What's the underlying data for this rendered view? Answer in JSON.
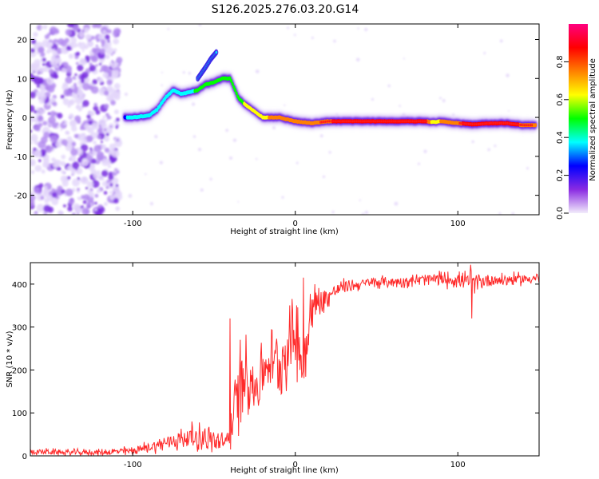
{
  "title": "S126.2025.276.03.20.G14",
  "chart_data": [
    {
      "type": "heatmap",
      "xlabel": "Height of straight line (km)",
      "ylabel": "Frequency (Hz)",
      "xlim": [
        -163,
        150
      ],
      "ylim": [
        -25,
        24
      ],
      "xticks": [
        -100,
        0,
        100
      ],
      "yticks": [
        -20,
        -10,
        0,
        10,
        20
      ],
      "colorbar": {
        "label": "Normalized spectral amplitude",
        "range": [
          0,
          1
        ],
        "ticks": [
          "0.0",
          "0.2",
          "0.4",
          "0.6",
          "0.8"
        ],
        "colors": [
          "#f2ecfb",
          "#8a2be2",
          "#0000ff",
          "#00ffff",
          "#00ff00",
          "#ffff00",
          "#ff8000",
          "#ff0000",
          "#ff0080"
        ]
      },
      "ridge": {
        "x": [
          -105,
          -100,
          -90,
          -85,
          -80,
          -75,
          -70,
          -60,
          -55,
          -50,
          -45,
          -40,
          -35,
          -30,
          -25,
          -20,
          -15,
          -10,
          0,
          10,
          20,
          40,
          60,
          80,
          85,
          90,
          100,
          110,
          120,
          130,
          140,
          148
        ],
        "freq": [
          0,
          0,
          0.5,
          2,
          5,
          7,
          6,
          7,
          8.5,
          9,
          10,
          10,
          5,
          3,
          1.5,
          0,
          0,
          0,
          -1,
          -1.5,
          -1,
          -1,
          -1,
          -1,
          -1.2,
          -1,
          -1.5,
          -1.8,
          -1.5,
          -1.5,
          -2,
          -2
        ],
        "amplitude": [
          0.3,
          0.35,
          0.4,
          0.4,
          0.4,
          0.4,
          0.4,
          0.45,
          0.5,
          0.5,
          0.5,
          0.5,
          0.5,
          0.6,
          0.6,
          0.65,
          0.7,
          0.75,
          0.7,
          0.8,
          0.8,
          0.9,
          0.9,
          0.85,
          0.6,
          0.7,
          0.8,
          0.85,
          0.9,
          0.85,
          0.8,
          0.8
        ]
      },
      "upper_branch": {
        "x": [
          -60,
          -55,
          -52,
          -50,
          -48
        ],
        "freq": [
          10,
          13,
          15,
          16,
          17
        ]
      },
      "noise_region": {
        "x_from": -163,
        "x_to": -108
      }
    },
    {
      "type": "line",
      "xlabel": "Height of straight line (km)",
      "ylabel": "SNR (10 * v/v)",
      "xlim": [
        -163,
        150
      ],
      "ylim": [
        0,
        450
      ],
      "xticks": [
        -100,
        0,
        100
      ],
      "yticks": [
        0,
        100,
        200,
        300,
        400
      ],
      "series": [
        {
          "name": "SNR",
          "color": "#ff2a2a",
          "x": [
            -163,
            -140,
            -120,
            -110,
            -100,
            -90,
            -80,
            -70,
            -60,
            -50,
            -45,
            -40,
            -36,
            -33,
            -30,
            -28,
            -25,
            -20,
            -15,
            -10,
            -5,
            0,
            3,
            5,
            8,
            10,
            15,
            20,
            25,
            30,
            40,
            50,
            60,
            70,
            80,
            90,
            100,
            108,
            110,
            120,
            130,
            140,
            150
          ],
          "base": [
            10,
            8,
            8,
            10,
            12,
            20,
            30,
            40,
            45,
            35,
            25,
            50,
            130,
            180,
            210,
            190,
            150,
            200,
            230,
            215,
            250,
            290,
            240,
            200,
            310,
            340,
            360,
            370,
            385,
            395,
            400,
            405,
            405,
            408,
            410,
            412,
            410,
            405,
            405,
            410,
            410,
            412,
            415
          ],
          "noise": [
            8,
            8,
            8,
            10,
            12,
            15,
            20,
            30,
            35,
            35,
            30,
            40,
            110,
            110,
            100,
            100,
            90,
            70,
            70,
            80,
            90,
            100,
            110,
            120,
            90,
            70,
            40,
            30,
            20,
            18,
            15,
            15,
            15,
            15,
            18,
            20,
            20,
            25,
            25,
            18,
            18,
            15,
            15
          ],
          "spikes": [
            {
              "x": 108.5,
              "y": 320
            },
            {
              "x": 108,
              "y": 445
            },
            {
              "x": -40,
              "y": 320
            },
            {
              "x": 5,
              "y": 415
            }
          ]
        }
      ]
    }
  ]
}
